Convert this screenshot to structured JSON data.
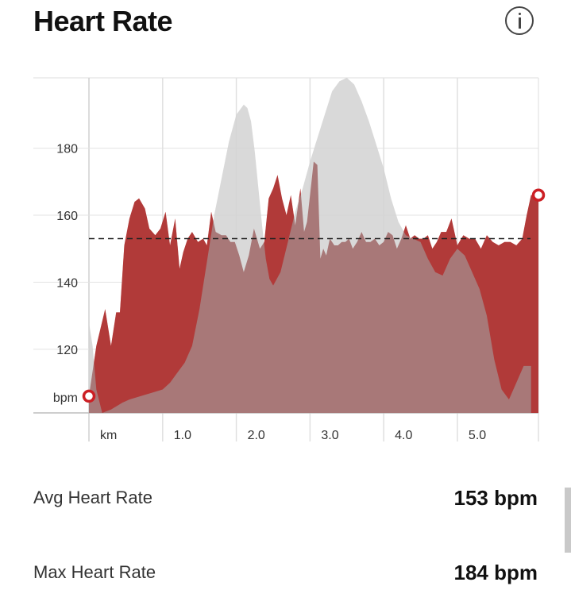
{
  "header": {
    "title": "Heart Rate",
    "info_icon": "info-icon"
  },
  "chart_data": {
    "type": "area",
    "xlabel": "km",
    "ylabel": "bpm",
    "xlim": [
      0,
      6.1
    ],
    "ylim": [
      101,
      201
    ],
    "x_ticks": [
      1.0,
      2.0,
      3.0,
      4.0,
      5.0
    ],
    "x_tick_labels": [
      "1.0",
      "2.0",
      "3.0",
      "4.0",
      "5.0"
    ],
    "y_ticks": [
      120,
      140,
      160,
      180
    ],
    "grid": true,
    "reference_line": {
      "value": 153,
      "style": "dashed"
    },
    "series": [
      {
        "color": "#e8403f",
        "x": [
          0.0,
          0.1,
          0.22,
          0.3,
          0.37,
          0.42,
          0.48,
          0.55,
          0.62,
          0.68,
          0.76,
          0.82,
          0.9,
          0.97,
          1.04,
          1.1,
          1.17,
          1.23,
          1.28,
          1.34,
          1.4,
          1.48,
          1.55,
          1.6,
          1.66,
          1.72,
          1.8,
          1.86,
          1.92,
          1.98,
          2.04,
          2.1,
          2.17,
          2.24,
          2.32,
          2.38,
          2.44,
          2.5,
          2.56,
          2.62,
          2.68,
          2.74,
          2.8,
          2.87,
          2.92,
          2.96,
          3.0,
          3.05,
          3.1,
          3.14,
          3.18,
          3.22,
          3.27,
          3.33,
          3.38,
          3.43,
          3.48,
          3.53,
          3.58,
          3.64,
          3.7,
          3.76,
          3.82,
          3.88,
          3.94,
          4.0,
          4.06,
          4.12,
          4.18,
          4.24,
          4.3,
          4.36,
          4.42,
          4.48,
          4.54,
          4.6,
          4.66,
          4.72,
          4.78,
          4.85,
          4.92,
          5.0,
          5.08,
          5.16,
          5.24,
          5.32,
          5.4,
          5.48,
          5.56,
          5.64,
          5.72,
          5.8,
          5.88,
          5.94,
          6.0,
          6.1
        ],
        "values": [
          106,
          121,
          132,
          121,
          131,
          131,
          151,
          159,
          164,
          165,
          162,
          156,
          154,
          156,
          161,
          151,
          159,
          144,
          149,
          153,
          155,
          152,
          153,
          151,
          161,
          155,
          154,
          154,
          152,
          152,
          148,
          143,
          148,
          156,
          150,
          152,
          165,
          168,
          172,
          165,
          160,
          166,
          157,
          168,
          155,
          158,
          166,
          176,
          175,
          147,
          150,
          148,
          153,
          151,
          151,
          152,
          152,
          153,
          150,
          152,
          155,
          152,
          152,
          153,
          151,
          152,
          155,
          154,
          150,
          153,
          157,
          153,
          154,
          153,
          153,
          154,
          150,
          152,
          155,
          155,
          159,
          151,
          154,
          153,
          153,
          150,
          154,
          152,
          151,
          152,
          152,
          151,
          153,
          160,
          166,
          166
        ]
      },
      {
        "color": "#d2d2d2",
        "x": [
          0.0,
          0.05,
          0.1,
          0.18,
          0.3,
          0.45,
          0.55,
          0.7,
          0.85,
          1.0,
          1.1,
          1.2,
          1.3,
          1.4,
          1.5,
          1.6,
          1.7,
          1.8,
          1.9,
          2.0,
          2.1,
          2.15,
          2.2,
          2.25,
          2.3,
          2.35,
          2.4,
          2.45,
          2.5,
          2.6,
          2.7,
          2.8,
          2.9,
          3.0,
          3.1,
          3.2,
          3.3,
          3.4,
          3.5,
          3.6,
          3.7,
          3.8,
          3.9,
          4.0,
          4.1,
          4.2,
          4.3,
          4.4,
          4.5,
          4.6,
          4.7,
          4.8,
          4.9,
          5.0,
          5.1,
          5.2,
          5.3,
          5.4,
          5.5,
          5.6,
          5.7,
          5.8,
          5.9,
          6.0
        ],
        "values": [
          128,
          121,
          108,
          101,
          102,
          104,
          105,
          106,
          107,
          108,
          110,
          113,
          116,
          121,
          132,
          146,
          160,
          171,
          182,
          190,
          193,
          192,
          188,
          179,
          168,
          157,
          147,
          141,
          139,
          143,
          152,
          161,
          168,
          176,
          183,
          190,
          197,
          200,
          201,
          199,
          194,
          188,
          181,
          174,
          165,
          158,
          154,
          153,
          152,
          147,
          143,
          142,
          147,
          150,
          148,
          143,
          138,
          130,
          117,
          108,
          105,
          110,
          115,
          115
        ]
      }
    ],
    "markers": [
      {
        "x": 0.0,
        "value": 106,
        "label": "start"
      },
      {
        "x": 6.1,
        "value": 166,
        "label": "end"
      }
    ]
  },
  "stats": {
    "avg_label": "Avg Heart Rate",
    "avg_value": "153 bpm",
    "max_label": "Max Heart Rate",
    "max_value": "184 bpm"
  }
}
